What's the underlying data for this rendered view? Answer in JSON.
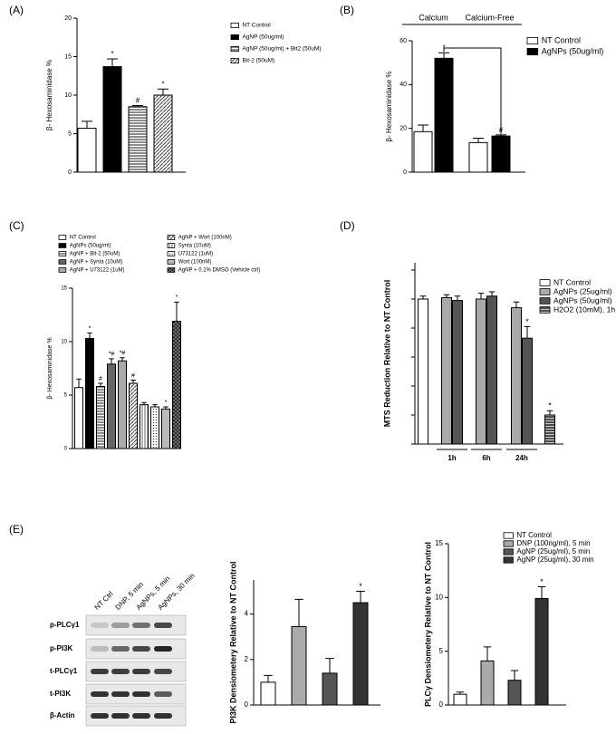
{
  "chart_data": [
    {
      "type": "bar",
      "panel": "(A)",
      "ylabel": "β- Hexosaminidase %",
      "ylim": [
        0,
        20
      ],
      "yticks": [
        0,
        5,
        10,
        15,
        20
      ],
      "legend": "upper right",
      "series": [
        {
          "name": "NT Control",
          "color": "#ffffff",
          "values": [
            5.7
          ],
          "errors": [
            0.9
          ],
          "annotations": [
            null
          ]
        },
        {
          "name": "AgNP (50ug/ml)",
          "color": "#000000",
          "values": [
            13.7
          ],
          "errors": [
            1.0
          ],
          "annotations": [
            "*"
          ]
        },
        {
          "name": "AgNP (50ug/ml) + Bit2 (50uM)",
          "color": "hstripe",
          "values": [
            8.5
          ],
          "errors": [
            0.15
          ],
          "annotations": [
            "#"
          ]
        },
        {
          "name": "Bit-2 (50uM)",
          "color": "diag",
          "values": [
            10.0
          ],
          "errors": [
            0.8
          ],
          "annotations": [
            "*"
          ]
        }
      ]
    },
    {
      "type": "bar",
      "panel": "(B)",
      "ylabel": "β- Hexosaminidase %",
      "ylim": [
        0,
        60
      ],
      "yticks": [
        0,
        20,
        40,
        60
      ],
      "legend": "upper right",
      "categories": [
        "Calcium",
        "Calcium-Free"
      ],
      "series": [
        {
          "name": "NT Control",
          "color": "#ffffff",
          "values": [
            18.5,
            13.5
          ],
          "errors": [
            3,
            2
          ],
          "annotations": [
            null,
            null
          ]
        },
        {
          "name": "AgNPs (50ug/ml)",
          "color": "#000000",
          "values": [
            52,
            16.5
          ],
          "errors": [
            2.5,
            0.5
          ],
          "annotations": [
            "*",
            "#"
          ]
        }
      ]
    },
    {
      "type": "bar",
      "panel": "(C)",
      "ylabel": "β- Hexosaminidase %",
      "ylim": [
        0,
        15
      ],
      "yticks": [
        0,
        5,
        10,
        15
      ],
      "legend": "upper left",
      "series": [
        {
          "name": "NT Control",
          "color": "#ffffff",
          "values": [
            5.7
          ],
          "errors": [
            0.8
          ],
          "annotations": [
            null
          ]
        },
        {
          "name": "AgNPs (50ug/ml)",
          "color": "#000000",
          "values": [
            10.3
          ],
          "errors": [
            0.5
          ],
          "annotations": [
            "*"
          ]
        },
        {
          "name": "AgNP + Bit-2 (50uM)",
          "color": "hstripe",
          "values": [
            5.8
          ],
          "errors": [
            0.3
          ],
          "annotations": [
            "#"
          ]
        },
        {
          "name": "AgNP + Synta (10uM)",
          "color": "#666666",
          "values": [
            7.9
          ],
          "errors": [
            0.5
          ],
          "annotations": [
            "*#"
          ]
        },
        {
          "name": "AgNP + U73122 (1uM)",
          "color": "#aaaaaa",
          "values": [
            8.2
          ],
          "errors": [
            0.3
          ],
          "annotations": [
            "*#"
          ]
        },
        {
          "name": "AgNP + Wort (100nM)",
          "color": "diag",
          "values": [
            6.1
          ],
          "errors": [
            0.3
          ],
          "annotations": [
            "#"
          ]
        },
        {
          "name": "Synta (10uM)",
          "color": "vstripe",
          "values": [
            4.1
          ],
          "errors": [
            0.2
          ],
          "annotations": [
            null
          ]
        },
        {
          "name": "U73122 (1uM)",
          "color": "dots",
          "values": [
            3.9
          ],
          "errors": [
            0.2
          ],
          "annotations": [
            null
          ]
        },
        {
          "name": "Wort (100nM)",
          "color": "#bbbbbb",
          "values": [
            3.7
          ],
          "errors": [
            0.2
          ],
          "annotations": [
            "*"
          ]
        },
        {
          "name": "AgNP + 0.1% DMSO (Vehicle ctrl)",
          "color": "cross",
          "values": [
            11.9
          ],
          "errors": [
            1.8
          ],
          "annotations": [
            "*"
          ]
        }
      ]
    },
    {
      "type": "bar",
      "panel": "(D)",
      "ylabel": "MTS Reduction Relative to NT Control",
      "ylim": [
        0,
        125
      ],
      "yticks": [
        0,
        20,
        40,
        60,
        80,
        100,
        120
      ],
      "legend": "upper right",
      "categories": [
        null,
        "1h",
        "6h",
        "24h",
        null
      ],
      "series": [
        {
          "name": "NT Control",
          "color": "#ffffff",
          "values": [
            100,
            null,
            null,
            null,
            null
          ],
          "errors": [
            2,
            null,
            null,
            null,
            null
          ],
          "annotations": [
            null,
            null,
            null,
            null,
            null
          ]
        },
        {
          "name": "AgNPs (25ug/ml)",
          "color": "#aaaaaa",
          "values": [
            null,
            101,
            100,
            94,
            null
          ],
          "errors": [
            null,
            2,
            4,
            4,
            null
          ],
          "annotations": [
            null,
            null,
            null,
            null,
            null
          ]
        },
        {
          "name": "AgNPs (50ug/ml)",
          "color": "#555555",
          "values": [
            null,
            99,
            102,
            73,
            null
          ],
          "errors": [
            null,
            3,
            3,
            8,
            null
          ],
          "annotations": [
            null,
            null,
            null,
            "*",
            null
          ]
        },
        {
          "name": "H2O2 (10mM), 1h",
          "color": "darkh",
          "values": [
            null,
            null,
            null,
            null,
            20
          ],
          "errors": [
            null,
            null,
            null,
            null,
            3
          ],
          "annotations": [
            null,
            null,
            null,
            null,
            "*"
          ]
        }
      ]
    },
    {
      "type": "bar",
      "panel": "(E)",
      "ylabel": "PI3K Densiometery Relative to NT Control",
      "ylim": [
        0,
        5.5
      ],
      "yticks": [
        0,
        2,
        4
      ],
      "series": [
        {
          "color": "#ffffff",
          "values": [
            1.0
          ],
          "errors": [
            0.3
          ],
          "annotations": [
            null
          ]
        },
        {
          "color": "#aaaaaa",
          "values": [
            3.45
          ],
          "errors": [
            1.2
          ],
          "annotations": [
            null
          ]
        },
        {
          "color": "#555555",
          "values": [
            1.4
          ],
          "errors": [
            0.65
          ],
          "annotations": [
            null
          ]
        },
        {
          "color": "#333333",
          "values": [
            4.5
          ],
          "errors": [
            0.5
          ],
          "annotations": [
            "*"
          ]
        }
      ]
    },
    {
      "type": "bar",
      "ylabel": "PLCγ Densiometery Relative to NT Control",
      "ylim": [
        0,
        15
      ],
      "yticks": [
        0,
        5,
        10,
        15
      ],
      "legend": "upper right",
      "series": [
        {
          "name": "NT Control",
          "color": "#ffffff",
          "values": [
            1.0
          ],
          "errors": [
            0.2
          ],
          "annotations": [
            null
          ]
        },
        {
          "name": "DNP (100ng/ml), 5 min",
          "color": "#aaaaaa",
          "values": [
            4.1
          ],
          "errors": [
            1.3
          ],
          "annotations": [
            null
          ]
        },
        {
          "name": "AgNP (25ug/ml), 5 min",
          "color": "#555555",
          "values": [
            2.3
          ],
          "errors": [
            0.9
          ],
          "annotations": [
            null
          ]
        },
        {
          "name": "AgNP (25ug/ml), 30 min",
          "color": "#333333",
          "values": [
            9.9
          ],
          "errors": [
            1.1
          ],
          "annotations": [
            "*"
          ]
        }
      ]
    }
  ],
  "blot": {
    "lanes": [
      "NT Ctrl",
      "DNP, 5 min",
      "AgNPs, 5 min",
      "AgNPs, 30 min"
    ],
    "rows": [
      "p-PLCγ1",
      "p-PI3K",
      "t-PLCγ1",
      "t-PI3K",
      "β-Actin"
    ]
  }
}
